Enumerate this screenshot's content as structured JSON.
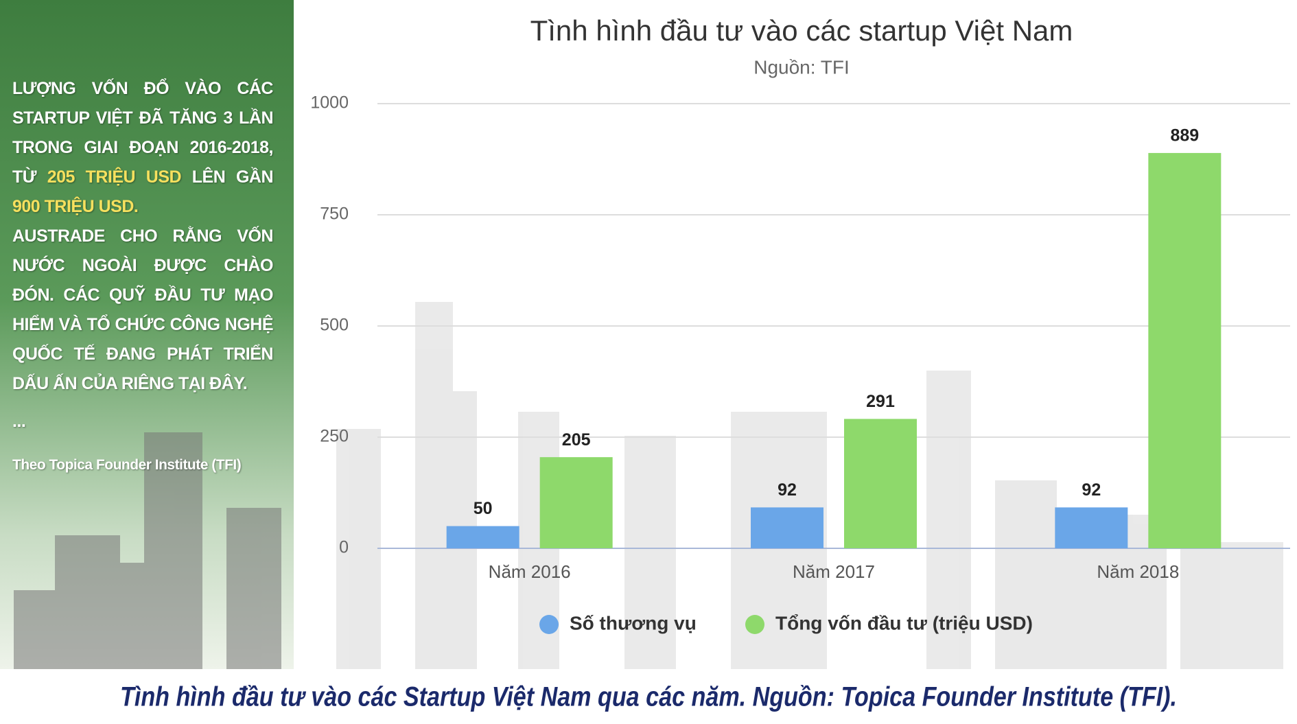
{
  "chart_data": {
    "type": "bar",
    "title": "Tình hình đầu tư vào các startup Việt Nam",
    "subtitle": "Nguồn: TFI",
    "categories": [
      "Năm 2016",
      "Năm 2017",
      "Năm 2018"
    ],
    "series": [
      {
        "name": "Số thương vụ",
        "color": "#6aa6e8",
        "values": [
          50,
          92,
          92
        ]
      },
      {
        "name": "Tổng vốn đầu tư (triệu USD)",
        "color": "#8ed96b",
        "values": [
          205,
          291,
          889
        ]
      }
    ],
    "ylim": [
      0,
      1000
    ],
    "yticks": [
      0,
      250,
      500,
      750,
      1000
    ],
    "grid": true
  },
  "sidebar": {
    "paragraph1": [
      "LƯỢNG VỐN ĐỔ VÀO CÁC STARTUP VIỆT ĐÃ TĂNG 3 LẦN TRONG GIAI ĐOẠN 2016-2018, TỪ",
      "205 TRIỆU USD",
      "LÊN GẦN",
      "900 TRIỆU USD."
    ],
    "paragraph2": "AUSTRADE CHO RẰNG VỐN NƯỚC NGOÀI ĐƯỢC CHÀO ĐÓN. CÁC QUỸ ĐẦU TƯ MẠO HIỂM VÀ TỔ CHỨC CÔNG NGHỆ QUỐC TẾ ĐANG PHÁT TRIỂN DẤU ẤN CỦA RIÊNG TẠI ĐÂY.",
    "ellipsis": "...",
    "source": "Theo Topica Founder Institute (TFI)"
  },
  "caption": "Tình hình đầu tư vào các Startup Việt Nam qua các năm. Nguồn: Topica Founder Institute (TFI)."
}
